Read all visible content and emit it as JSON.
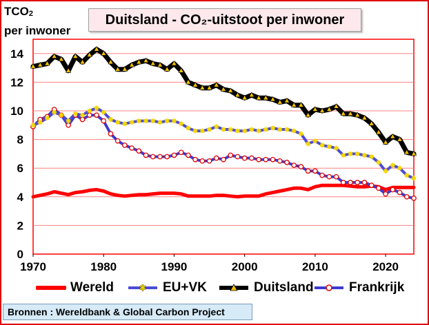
{
  "title": "Duitsland - CO₂-uitstoot per inwoner",
  "ylabel_line1_main": "TCO",
  "ylabel_line1_sub": "2",
  "ylabel_line2": "per inwoner",
  "source": "Bronnen : Wereldbank & Global Carbon Project",
  "colors": {
    "wereld": "#ff0000",
    "eu_vk": "#4b4bd6",
    "duitsland": "#000000",
    "frankrijk": "#3b3bd0",
    "plot_border": "#ff0000",
    "grid": "#ff8080",
    "title_bg": "#fde9ec",
    "source_bg": "#d6eaf8",
    "marker_star": "#f5d800",
    "marker_triangle": "#f0c000",
    "marker_circle": "#ffffff"
  },
  "chart_data": {
    "type": "line",
    "xlim": [
      1970,
      2024
    ],
    "ylim": [
      0,
      15
    ],
    "x_ticks": [
      1970,
      1980,
      1990,
      2000,
      2010,
      2020
    ],
    "y_ticks": [
      0,
      2,
      4,
      6,
      8,
      10,
      12,
      14
    ],
    "grid": "horizontal",
    "legend_position": "bottom",
    "x": [
      1970,
      1971,
      1972,
      1973,
      1974,
      1975,
      1976,
      1977,
      1978,
      1979,
      1980,
      1981,
      1982,
      1983,
      1984,
      1985,
      1986,
      1987,
      1988,
      1989,
      1990,
      1991,
      1992,
      1993,
      1994,
      1995,
      1996,
      1997,
      1998,
      1999,
      2000,
      2001,
      2002,
      2003,
      2004,
      2005,
      2006,
      2007,
      2008,
      2009,
      2010,
      2011,
      2012,
      2013,
      2014,
      2015,
      2016,
      2017,
      2018,
      2019,
      2020,
      2021,
      2022,
      2023,
      2024
    ],
    "series": [
      {
        "name": "Wereld",
        "values": [
          4.0,
          4.1,
          4.2,
          4.35,
          4.25,
          4.15,
          4.3,
          4.35,
          4.45,
          4.5,
          4.4,
          4.2,
          4.1,
          4.05,
          4.1,
          4.15,
          4.15,
          4.2,
          4.25,
          4.25,
          4.25,
          4.2,
          4.05,
          4.05,
          4.05,
          4.05,
          4.1,
          4.1,
          4.05,
          4.0,
          4.05,
          4.05,
          4.05,
          4.2,
          4.3,
          4.4,
          4.5,
          4.6,
          4.6,
          4.5,
          4.7,
          4.8,
          4.8,
          4.8,
          4.8,
          4.75,
          4.7,
          4.7,
          4.75,
          4.7,
          4.5,
          4.65,
          4.65,
          4.65,
          4.65
        ]
      },
      {
        "name": "EU+VK",
        "values": [
          9.0,
          9.2,
          9.5,
          9.9,
          9.7,
          9.3,
          9.8,
          9.7,
          10.0,
          10.2,
          9.9,
          9.4,
          9.2,
          9.1,
          9.2,
          9.3,
          9.3,
          9.3,
          9.2,
          9.3,
          9.3,
          9.1,
          8.8,
          8.6,
          8.6,
          8.7,
          8.9,
          8.7,
          8.7,
          8.6,
          8.6,
          8.7,
          8.6,
          8.7,
          8.8,
          8.7,
          8.7,
          8.6,
          8.4,
          7.7,
          7.9,
          7.6,
          7.5,
          7.4,
          6.9,
          7.0,
          7.0,
          6.9,
          6.8,
          6.4,
          5.8,
          6.2,
          6.0,
          5.5,
          5.3
        ]
      },
      {
        "name": "Duitsland",
        "values": [
          13.1,
          13.2,
          13.3,
          13.8,
          13.6,
          12.8,
          13.8,
          13.4,
          13.9,
          14.3,
          14.0,
          13.4,
          12.9,
          12.9,
          13.2,
          13.4,
          13.5,
          13.3,
          13.2,
          12.9,
          13.3,
          12.8,
          12.0,
          11.8,
          11.6,
          11.6,
          11.8,
          11.5,
          11.4,
          11.1,
          10.9,
          11.1,
          10.9,
          10.9,
          10.8,
          10.6,
          10.7,
          10.4,
          10.4,
          9.7,
          10.1,
          10.0,
          10.1,
          10.3,
          9.8,
          9.8,
          9.7,
          9.5,
          9.1,
          8.5,
          7.8,
          8.2,
          8.0,
          7.1,
          7.0
        ]
      },
      {
        "name": "Frankrijk",
        "values": [
          8.9,
          9.4,
          9.6,
          10.1,
          9.7,
          9.0,
          9.7,
          9.4,
          9.7,
          9.7,
          9.3,
          8.4,
          7.9,
          7.6,
          7.4,
          7.2,
          6.9,
          6.8,
          6.8,
          6.8,
          6.9,
          7.1,
          6.9,
          6.6,
          6.5,
          6.5,
          6.7,
          6.6,
          6.9,
          6.8,
          6.7,
          6.7,
          6.6,
          6.6,
          6.6,
          6.5,
          6.4,
          6.2,
          6.1,
          5.8,
          5.8,
          5.5,
          5.4,
          5.4,
          5.0,
          5.0,
          5.0,
          5.0,
          4.8,
          4.6,
          4.2,
          4.5,
          4.3,
          4.0,
          3.9
        ]
      }
    ]
  }
}
